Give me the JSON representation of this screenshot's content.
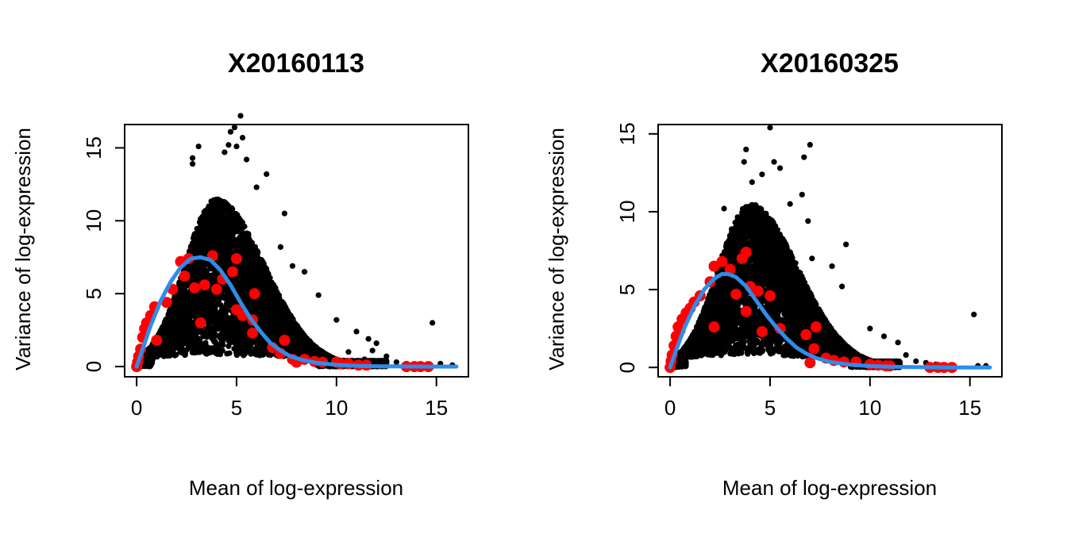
{
  "chart_data": [
    {
      "type": "scatter",
      "title": "X20160113",
      "xlabel": "Mean of log-expression",
      "ylabel": "Variance of log-expression",
      "xlim": [
        -0.6,
        16.6
      ],
      "ylim": [
        -0.7,
        16.6
      ],
      "xticks": [
        0,
        5,
        10,
        15
      ],
      "yticks": [
        0,
        5,
        10,
        15
      ],
      "grid": false,
      "legend": "none",
      "colors": {
        "genes": "#000000",
        "spike_ins": "#ff0000",
        "trend": "#2f8ce8"
      },
      "series": [
        {
          "kind": "points",
          "color": "#000000",
          "cloud": {
            "peak_mean": 4.0,
            "peak_variance": 11.5,
            "x_min": 0,
            "x_max": 12.5
          },
          "points": [
            [
              5.2,
              17.2
            ],
            [
              4.9,
              16.4
            ],
            [
              4.7,
              16.1
            ],
            [
              5.3,
              15.7
            ],
            [
              4.6,
              15.2
            ],
            [
              3.1,
              15.1
            ],
            [
              5.0,
              15.1
            ],
            [
              2.8,
              14.3
            ],
            [
              4.4,
              14.7
            ],
            [
              5.5,
              14.2
            ],
            [
              6.5,
              13.2
            ],
            [
              2.8,
              13.9
            ],
            [
              6.0,
              12.3
            ],
            [
              7.4,
              10.5
            ],
            [
              7.2,
              8.2
            ],
            [
              7.8,
              6.9
            ],
            [
              8.4,
              6.5
            ],
            [
              9.1,
              4.9
            ],
            [
              10.0,
              3.2
            ],
            [
              11.0,
              2.4
            ],
            [
              11.6,
              1.9
            ],
            [
              12.0,
              1.6
            ],
            [
              10.6,
              1.0
            ],
            [
              11.4,
              0.5
            ],
            [
              11.8,
              1.1
            ],
            [
              12.5,
              0.7
            ],
            [
              13.0,
              0.3
            ],
            [
              13.5,
              0.2
            ],
            [
              14.8,
              3.0
            ],
            [
              15.2,
              0.2
            ],
            [
              15.8,
              0.1
            ]
          ]
        },
        {
          "kind": "points",
          "color": "#ff0000",
          "points": [
            [
              0,
              0
            ],
            [
              0.05,
              0.3
            ],
            [
              0.1,
              0.7
            ],
            [
              0.2,
              1.2
            ],
            [
              0.3,
              2.0
            ],
            [
              0.4,
              2.6
            ],
            [
              0.5,
              3.0
            ],
            [
              0.7,
              3.5
            ],
            [
              0.9,
              4.1
            ],
            [
              1.0,
              1.8
            ],
            [
              1.5,
              4.4
            ],
            [
              1.8,
              5.3
            ],
            [
              2.2,
              7.2
            ],
            [
              2.4,
              6.2
            ],
            [
              2.6,
              7.4
            ],
            [
              2.9,
              5.4
            ],
            [
              3.2,
              3.0
            ],
            [
              3.4,
              5.6
            ],
            [
              3.8,
              7.6
            ],
            [
              4.0,
              5.3
            ],
            [
              4.3,
              6.0
            ],
            [
              4.8,
              6.5
            ],
            [
              5.0,
              7.4
            ],
            [
              5.0,
              3.9
            ],
            [
              5.3,
              3.5
            ],
            [
              5.8,
              3.2
            ],
            [
              5.8,
              2.3
            ],
            [
              5.9,
              5.0
            ],
            [
              6.8,
              1.3
            ],
            [
              7.2,
              0.9
            ],
            [
              7.4,
              1.8
            ],
            [
              7.8,
              0.5
            ],
            [
              8.0,
              0.3
            ],
            [
              8.4,
              0.5
            ],
            [
              8.9,
              0.35
            ],
            [
              9.3,
              0.3
            ],
            [
              10.0,
              0.3
            ],
            [
              10.2,
              0.2
            ],
            [
              10.6,
              0.2
            ],
            [
              11.1,
              0.1
            ],
            [
              11.5,
              0.1
            ],
            [
              13.5,
              0
            ],
            [
              13.9,
              0
            ],
            [
              14.2,
              0
            ],
            [
              14.6,
              0
            ]
          ]
        },
        {
          "kind": "line",
          "color": "#2f8ce8",
          "points": [
            [
              0,
              0
            ],
            [
              0.3,
              1.2
            ],
            [
              0.7,
              2.8
            ],
            [
              1.2,
              4.5
            ],
            [
              1.7,
              5.8
            ],
            [
              2.2,
              6.8
            ],
            [
              2.7,
              7.4
            ],
            [
              3.2,
              7.5
            ],
            [
              3.7,
              7.3
            ],
            [
              4.2,
              6.6
            ],
            [
              4.7,
              5.6
            ],
            [
              5.2,
              4.4
            ],
            [
              5.7,
              3.3
            ],
            [
              6.2,
              2.4
            ],
            [
              6.7,
              1.6
            ],
            [
              7.2,
              1.1
            ],
            [
              7.7,
              0.7
            ],
            [
              8.3,
              0.45
            ],
            [
              9.0,
              0.25
            ],
            [
              10.0,
              0.12
            ],
            [
              11.0,
              0.05
            ],
            [
              12.0,
              0.02
            ],
            [
              13.0,
              0.01
            ],
            [
              14.0,
              0
            ],
            [
              16.0,
              0
            ]
          ]
        }
      ]
    },
    {
      "type": "scatter",
      "title": "X20160325",
      "xlabel": "Mean of log-expression",
      "ylabel": "Variance of log-expression",
      "xlim": [
        -0.6,
        16.6
      ],
      "ylim": [
        -0.6,
        15.6
      ],
      "xticks": [
        0,
        5,
        10,
        15
      ],
      "yticks": [
        0,
        5,
        10,
        15
      ],
      "grid": false,
      "legend": "none",
      "colors": {
        "genes": "#000000",
        "spike_ins": "#ff0000",
        "trend": "#2f8ce8"
      },
      "series": [
        {
          "kind": "points",
          "color": "#000000",
          "cloud": {
            "peak_mean": 4.0,
            "peak_variance": 10.5,
            "x_min": 0,
            "x_max": 11.5
          },
          "points": [
            [
              5.0,
              15.4
            ],
            [
              3.8,
              14.0
            ],
            [
              7.0,
              14.3
            ],
            [
              5.2,
              13.2
            ],
            [
              6.7,
              13.5
            ],
            [
              3.7,
              13.2
            ],
            [
              5.5,
              12.8
            ],
            [
              4.6,
              12.4
            ],
            [
              4.1,
              11.9
            ],
            [
              6.6,
              11.1
            ],
            [
              6.0,
              10.5
            ],
            [
              2.7,
              10.2
            ],
            [
              6.9,
              9.4
            ],
            [
              8.8,
              7.9
            ],
            [
              7.1,
              7.0
            ],
            [
              8.1,
              6.5
            ],
            [
              8.6,
              5.2
            ],
            [
              10.0,
              2.5
            ],
            [
              10.7,
              2.0
            ],
            [
              11.4,
              1.6
            ],
            [
              11.8,
              0.8
            ],
            [
              12.3,
              0.4
            ],
            [
              12.8,
              0.3
            ],
            [
              13.3,
              0.2
            ],
            [
              15.2,
              3.4
            ],
            [
              15.4,
              0.1
            ],
            [
              15.8,
              0.1
            ]
          ]
        },
        {
          "kind": "points",
          "color": "#ff0000",
          "points": [
            [
              0,
              0
            ],
            [
              0.05,
              0.4
            ],
            [
              0.1,
              0.8
            ],
            [
              0.2,
              1.4
            ],
            [
              0.3,
              2.0
            ],
            [
              0.4,
              2.6
            ],
            [
              0.5,
              2.4
            ],
            [
              0.6,
              3.1
            ],
            [
              0.8,
              3.5
            ],
            [
              1.0,
              3.8
            ],
            [
              1.2,
              4.2
            ],
            [
              1.5,
              4.6
            ],
            [
              2.0,
              5.5
            ],
            [
              2.2,
              6.5
            ],
            [
              2.2,
              2.6
            ],
            [
              2.6,
              6.8
            ],
            [
              3.0,
              6.3
            ],
            [
              3.3,
              4.7
            ],
            [
              3.6,
              7.0
            ],
            [
              3.8,
              7.4
            ],
            [
              3.8,
              3.6
            ],
            [
              4.0,
              5.2
            ],
            [
              4.4,
              4.9
            ],
            [
              4.6,
              2.3
            ],
            [
              5.0,
              4.6
            ],
            [
              5.5,
              2.5
            ],
            [
              6.8,
              2.1
            ],
            [
              7.0,
              0.3
            ],
            [
              7.2,
              1.2
            ],
            [
              7.3,
              2.6
            ],
            [
              7.8,
              0.6
            ],
            [
              8.2,
              0.45
            ],
            [
              8.7,
              0.35
            ],
            [
              9.3,
              0.35
            ],
            [
              10.0,
              0.2
            ],
            [
              10.4,
              0.15
            ],
            [
              10.8,
              0.1
            ],
            [
              11.0,
              0.1
            ],
            [
              13.0,
              0
            ],
            [
              13.4,
              0
            ],
            [
              13.7,
              0
            ],
            [
              14.1,
              0
            ]
          ]
        },
        {
          "kind": "line",
          "color": "#2f8ce8",
          "points": [
            [
              0,
              0
            ],
            [
              0.3,
              1.1
            ],
            [
              0.7,
              2.5
            ],
            [
              1.2,
              3.9
            ],
            [
              1.7,
              5.0
            ],
            [
              2.2,
              5.7
            ],
            [
              2.6,
              6.0
            ],
            [
              2.9,
              6.0
            ],
            [
              3.3,
              5.8
            ],
            [
              3.8,
              5.2
            ],
            [
              4.3,
              4.3
            ],
            [
              4.8,
              3.4
            ],
            [
              5.3,
              2.6
            ],
            [
              5.8,
              1.9
            ],
            [
              6.3,
              1.3
            ],
            [
              6.8,
              0.9
            ],
            [
              7.3,
              0.6
            ],
            [
              8.0,
              0.35
            ],
            [
              9.0,
              0.18
            ],
            [
              10.0,
              0.09
            ],
            [
              11.0,
              0.04
            ],
            [
              12.0,
              0.02
            ],
            [
              13.0,
              0.01
            ],
            [
              14.0,
              0
            ],
            [
              16.0,
              0
            ]
          ]
        }
      ]
    }
  ]
}
